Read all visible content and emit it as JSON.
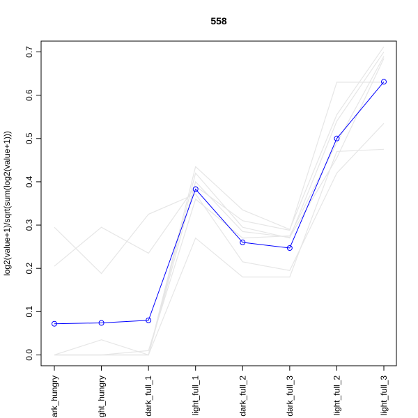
{
  "chart_data": {
    "type": "line",
    "title": "558",
    "xlabel": "",
    "ylabel": "log2(value+1)/sqrt(sum(log2(value+1)))",
    "categories": [
      "dark_hungry",
      "light_hungry",
      "dark_full_1",
      "light_full_1",
      "dark_full_2",
      "dark_full_3",
      "light_full_2",
      "light_full_3"
    ],
    "category_labels_shown": [
      "ark_hungry",
      "ght_hungry",
      "dark_full_1",
      "light_full_1",
      "dark_full_2",
      "dark_full_3",
      "light_full_2",
      "light_full_3"
    ],
    "ylim": [
      -0.025,
      0.725
    ],
    "yticks": [
      0.0,
      0.1,
      0.2,
      0.3,
      0.4,
      0.5,
      0.6,
      0.7
    ],
    "ytick_labels": [
      "0.0",
      "0.1",
      "0.2",
      "0.3",
      "0.4",
      "0.5",
      "0.6",
      "0.7"
    ],
    "grid": false,
    "legend": "none",
    "highlight": {
      "color": "#0000ff",
      "marker": "open-circle",
      "values": [
        0.072,
        0.074,
        0.08,
        0.383,
        0.26,
        0.247,
        0.5,
        0.631
      ]
    },
    "background_color": "#e6e6e6",
    "background_series": [
      [
        0.0,
        0.0,
        0.0,
        0.27,
        0.18,
        0.18,
        0.47,
        0.475
      ],
      [
        0.205,
        0.295,
        0.235,
        0.39,
        0.31,
        0.288,
        0.63,
        0.63
      ],
      [
        0.295,
        0.188,
        0.325,
        0.372,
        0.215,
        0.195,
        0.42,
        0.535
      ],
      [
        0.0,
        0.035,
        0.0,
        0.435,
        0.335,
        0.29,
        0.555,
        0.712
      ],
      [
        0.0,
        0.0,
        0.0,
        0.42,
        0.295,
        0.27,
        0.54,
        0.7
      ],
      [
        0.0,
        0.0,
        0.0,
        0.4,
        0.285,
        0.272,
        0.455,
        0.685
      ],
      [
        0.0,
        0.0,
        0.01,
        0.36,
        0.27,
        0.275,
        0.49,
        0.69
      ]
    ]
  }
}
